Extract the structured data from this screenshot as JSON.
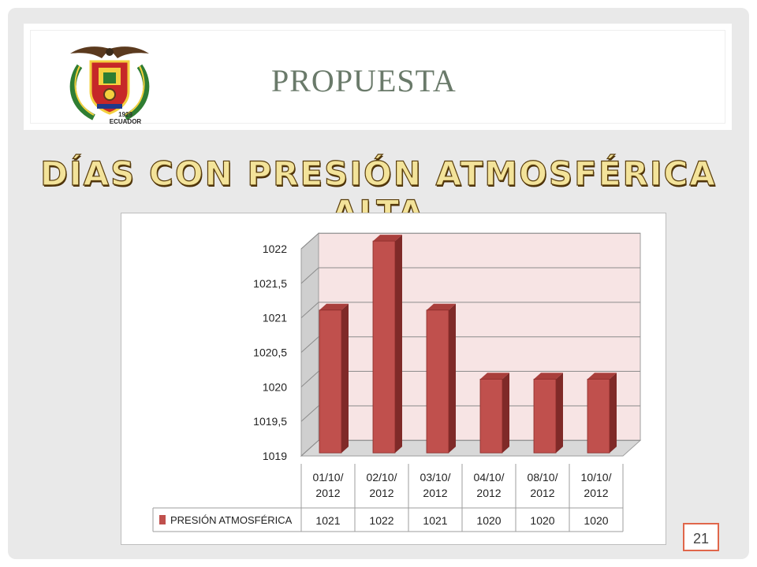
{
  "slide": {
    "title": "PROPUESTA",
    "logo_text_year": "1929",
    "logo_text_country": "ECUADOR",
    "page_number": "21"
  },
  "chart_data": {
    "type": "bar",
    "title": "DÍAS CON PRESIÓN ATMOSFÉRICA ALTA",
    "categories": [
      "01/10/ 2012",
      "02/10/ 2012",
      "03/10/ 2012",
      "04/10/ 2012",
      "08/10/ 2012",
      "10/10/ 2012"
    ],
    "category_lines": [
      [
        "01/10/",
        "2012"
      ],
      [
        "02/10/",
        "2012"
      ],
      [
        "03/10/",
        "2012"
      ],
      [
        "04/10/",
        "2012"
      ],
      [
        "08/10/",
        "2012"
      ],
      [
        "10/10/",
        "2012"
      ]
    ],
    "series": [
      {
        "name": "PRESIÓN ATMOSFÉRICA",
        "values": [
          1021,
          1022,
          1021,
          1020,
          1020,
          1020
        ],
        "value_labels": [
          "1021",
          "1022",
          "1021",
          "1020",
          "1020",
          "1020"
        ]
      }
    ],
    "ylim": [
      1019,
      1022
    ],
    "yticks": [
      "1019",
      "1019,5",
      "1020",
      "1020,5",
      "1021",
      "1021,5",
      "1022"
    ],
    "ytick_values": [
      1019,
      1019.5,
      1020,
      1020.5,
      1021,
      1021.5,
      1022
    ],
    "grid": true,
    "legend": "data-table",
    "colors": {
      "bar_front": "#c0504d",
      "bar_side": "#7f2a28",
      "bar_top": "#a93f3c",
      "plot_bg": "#f7e4e4",
      "wall_side": "#cfcfcf",
      "floor": "#d8d8d8"
    }
  }
}
